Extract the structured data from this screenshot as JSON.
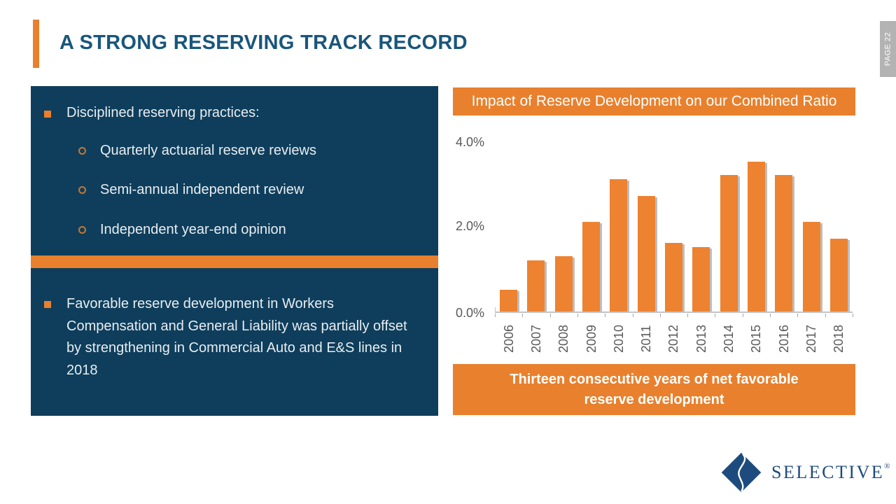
{
  "header": {
    "title": "A STRONG RESERVING TRACK RECORD",
    "page_label": "PAGE 22"
  },
  "left_panel": {
    "heading": "Disciplined reserving practices:",
    "sub_items": [
      "Quarterly actuarial reserve reviews",
      "Semi-annual independent review",
      "Independent year-end opinion"
    ],
    "body": "Favorable reserve development in Workers Compensation and General Liability was partially offset by strengthening in Commercial Auto and E&S lines in 2018"
  },
  "chart_data": {
    "type": "bar",
    "title": "Impact of Reserve Development on our Combined Ratio",
    "categories": [
      "2006",
      "2007",
      "2008",
      "2009",
      "2010",
      "2011",
      "2012",
      "2013",
      "2014",
      "2015",
      "2016",
      "2017",
      "2018"
    ],
    "values": [
      0.5,
      1.2,
      1.3,
      2.1,
      3.1,
      2.7,
      1.6,
      1.5,
      3.2,
      3.5,
      3.2,
      2.1,
      1.7
    ],
    "unit": "%",
    "xlabel": "",
    "ylabel": "",
    "ylim": [
      0,
      4
    ],
    "yticks_top_to_bottom": [
      "4.0%",
      "2.0%",
      "0.0%"
    ],
    "grid": false,
    "legend": "none",
    "bar_color": "#ED8230"
  },
  "footer_banner": {
    "text": "Thirteen consecutive years of net favorable reserve development"
  },
  "logo": {
    "wordmark": "SELECTIVE",
    "registered_mark": "®"
  },
  "colors": {
    "navy_panel": "#0E3E5C",
    "orange_accent": "#E8802D",
    "title_blue": "#19567C",
    "axis_text_gray": "#595959",
    "page_tab_gray": "#B3B3B3",
    "logo_blue": "#1D4B7D"
  }
}
